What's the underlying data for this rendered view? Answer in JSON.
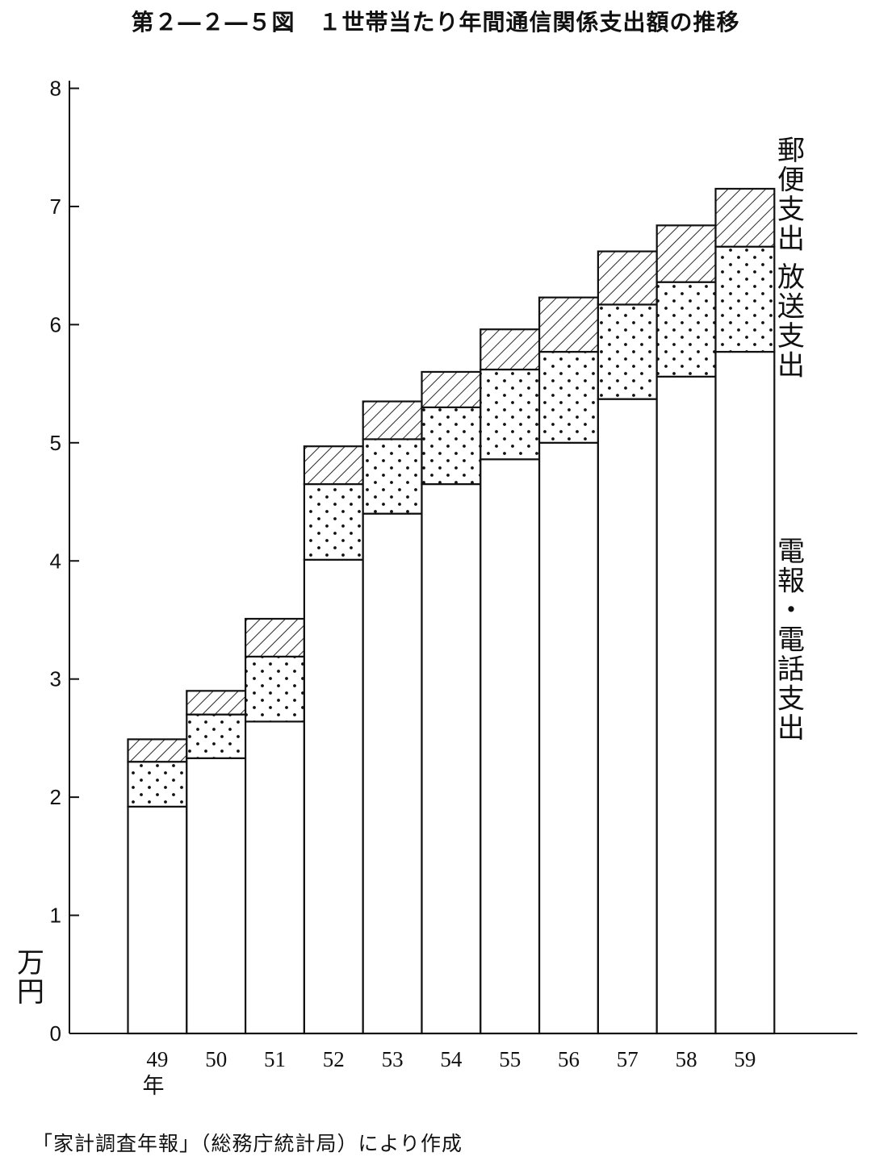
{
  "title": "第２―２―５図　１世帯当たり年間通信関係支出額の推移",
  "source": "「家計調査年報」（総務庁統計局）により作成",
  "chart_data": {
    "type": "bar",
    "stacked": true,
    "categories": [
      "49",
      "50",
      "51",
      "52",
      "53",
      "54",
      "55",
      "56",
      "57",
      "58",
      "59"
    ],
    "x_unit_label": "年",
    "y_unit_label": "万円",
    "ylim": [
      0,
      8
    ],
    "yticks": [
      "0",
      "1",
      "2",
      "3",
      "4",
      "5",
      "6",
      "7",
      "8"
    ],
    "grid": false,
    "series": [
      {
        "name": "電報・電話支出",
        "pattern": "blank",
        "values": [
          1.92,
          2.33,
          2.64,
          4.01,
          4.4,
          4.65,
          4.86,
          5.0,
          5.37,
          5.56,
          5.77
        ]
      },
      {
        "name": "放送支出",
        "pattern": "dots",
        "values": [
          0.38,
          0.37,
          0.55,
          0.64,
          0.63,
          0.65,
          0.76,
          0.77,
          0.8,
          0.8,
          0.89
        ]
      },
      {
        "name": "郵便支出",
        "pattern": "hatch",
        "values": [
          0.19,
          0.2,
          0.32,
          0.32,
          0.32,
          0.3,
          0.34,
          0.46,
          0.45,
          0.48,
          0.49
        ]
      }
    ]
  }
}
